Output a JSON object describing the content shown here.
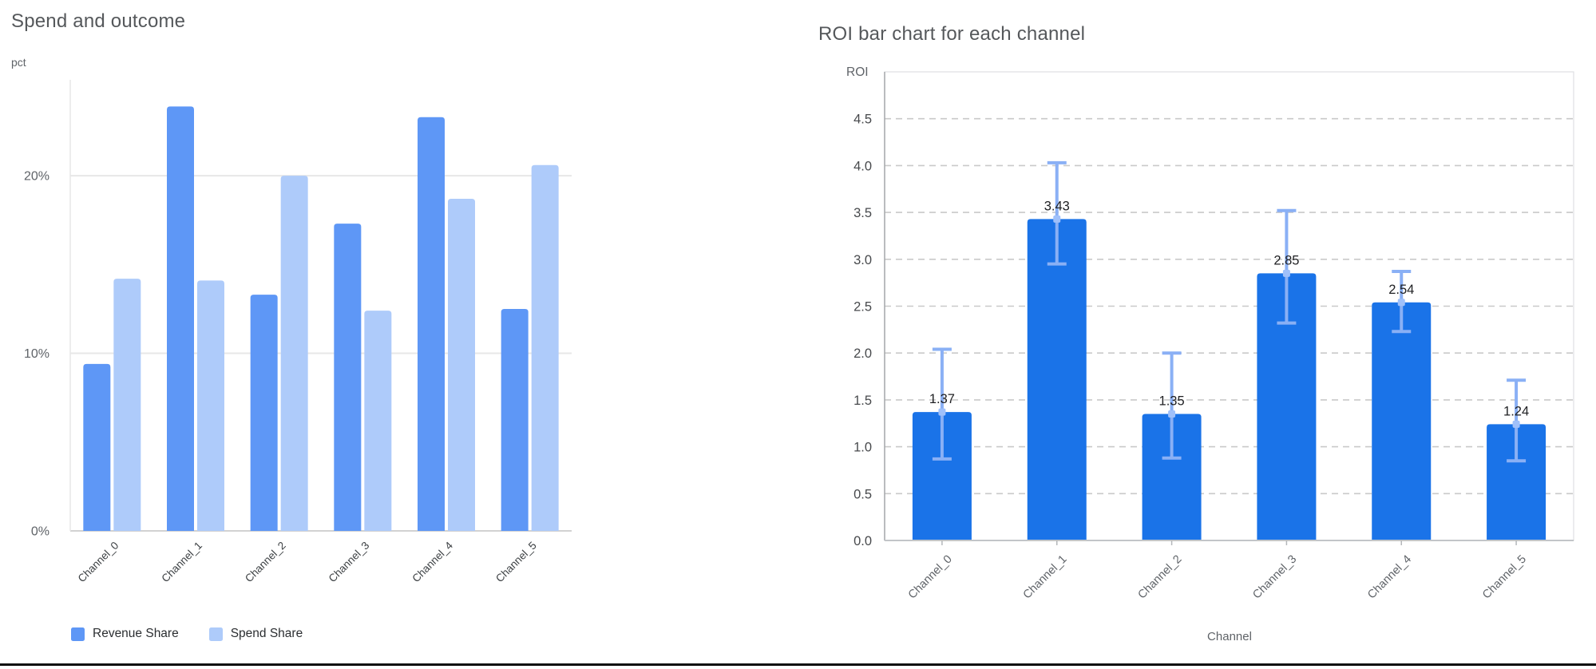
{
  "page": {
    "background": "#ffffff",
    "bottom_edge_color": "#0d0d0d"
  },
  "chart_data": [
    {
      "type": "bar",
      "variant": "grouped",
      "title": "Spend and outcome",
      "ylabel": "pct",
      "xlabel": "",
      "categories": [
        "Channel_0",
        "Channel_1",
        "Channel_2",
        "Channel_3",
        "Channel_4",
        "Channel_5"
      ],
      "series": [
        {
          "name": "Revenue Share",
          "color": "#5e97f6",
          "values": [
            9.4,
            23.9,
            13.3,
            17.3,
            23.3,
            12.5
          ]
        },
        {
          "name": "Spend Share",
          "color": "#aecbfa",
          "values": [
            14.2,
            14.1,
            20.0,
            12.4,
            18.7,
            20.6
          ]
        }
      ],
      "y_ticks": [
        {
          "value": 0,
          "label": "0%"
        },
        {
          "value": 10,
          "label": "10%"
        },
        {
          "value": 20,
          "label": "20%"
        }
      ],
      "ylim": [
        0,
        25.4
      ],
      "grid": "solid-horizontal",
      "legend_position": "bottom-left"
    },
    {
      "type": "bar",
      "variant": "single-with-error-bars",
      "title": "ROI bar chart for each channel",
      "ylabel": "ROI",
      "xlabel": "Channel",
      "categories": [
        "Channel_0",
        "Channel_1",
        "Channel_2",
        "Channel_3",
        "Channel_4",
        "Channel_5"
      ],
      "values": [
        1.37,
        3.43,
        1.35,
        2.85,
        2.54,
        1.24
      ],
      "value_labels": [
        "1.37",
        "3.43",
        "1.35",
        "2.85",
        "2.54",
        "1.24"
      ],
      "error_low": [
        0.87,
        2.95,
        0.88,
        2.32,
        2.23,
        0.85
      ],
      "error_high": [
        2.04,
        4.03,
        2.0,
        3.52,
        2.87,
        1.71
      ],
      "bar_color": "#1a73e8",
      "error_bar_color": "#8ab0f5",
      "error_marker_color": "#9fc0fa",
      "value_label_color": "#202124",
      "y_tick_labels": [
        "0.0",
        "0.5",
        "1.0",
        "1.5",
        "2.0",
        "2.5",
        "3.0",
        "3.5",
        "4.0",
        "4.5"
      ],
      "y_tick_step": 0.5,
      "ylim": [
        0,
        5.0
      ],
      "grid": "dashed-horizontal",
      "plot_border": true,
      "legend_position": "none"
    }
  ]
}
